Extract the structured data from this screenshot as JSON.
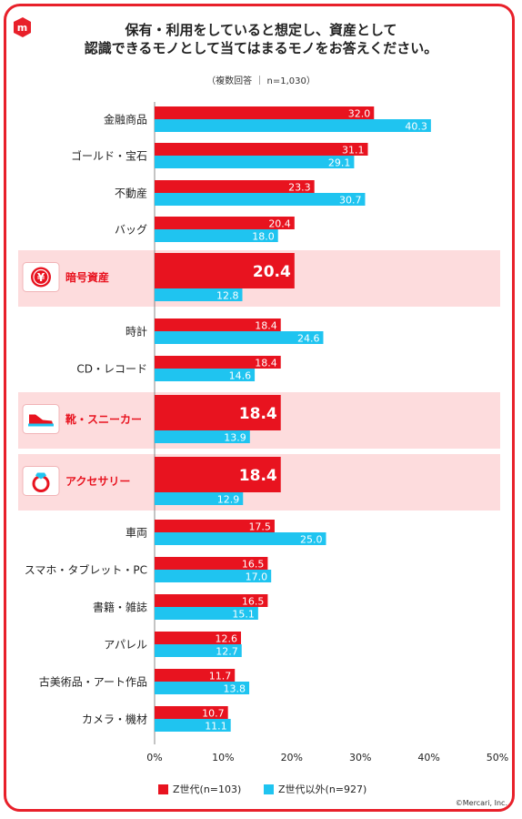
{
  "header": {
    "title_line1": "保有・利用をしていると想定し、資産として",
    "title_line2": "認識できるモノとして当てはまるモノをお答えください。",
    "note": "（複数回答 ｜ n=1,030）"
  },
  "footer": {
    "copyright": "©Mercari, Inc."
  },
  "colors": {
    "z": "#e8131f",
    "other": "#1fc4f0",
    "highlight_bg": "#fddcdd",
    "frame": "#e8202a"
  },
  "chart_data": {
    "type": "bar",
    "orientation": "horizontal",
    "categories": [
      "金融商品",
      "ゴールド・宝石",
      "不動産",
      "バッグ",
      "暗号資産",
      "時計",
      "CD・レコード",
      "靴・スニーカー",
      "アクセサリー",
      "車両",
      "スマホ・タブレット・PC",
      "書籍・雑誌",
      "アパレル",
      "古美術品・アート作品",
      "カメラ・機材"
    ],
    "highlighted": [
      {
        "category": "暗号資産",
        "icon": "yen-coin-icon"
      },
      {
        "category": "靴・スニーカー",
        "icon": "sneaker-icon"
      },
      {
        "category": "アクセサリー",
        "icon": "ring-icon"
      }
    ],
    "series": [
      {
        "name": "Z世代(n=103)",
        "color": "#e8131f",
        "values": [
          32.0,
          31.1,
          23.3,
          20.4,
          20.4,
          18.4,
          18.4,
          18.4,
          18.4,
          17.5,
          16.5,
          16.5,
          12.6,
          11.7,
          10.7
        ]
      },
      {
        "name": "Z世代以外(n=927)",
        "color": "#1fc4f0",
        "values": [
          40.3,
          29.1,
          30.7,
          18.0,
          12.8,
          24.6,
          14.6,
          13.9,
          12.9,
          25.0,
          17.0,
          15.1,
          12.7,
          13.8,
          11.1
        ]
      }
    ],
    "xlim": [
      0,
      50
    ],
    "xticks": [
      "0%",
      "10%",
      "20%",
      "30%",
      "40%",
      "50%"
    ],
    "legend_position": "bottom-left"
  }
}
